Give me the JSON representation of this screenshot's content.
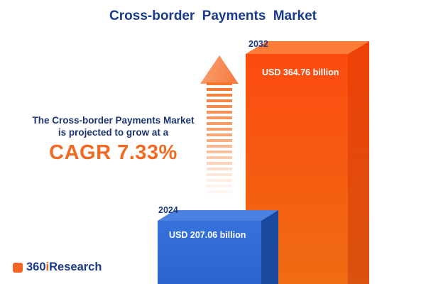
{
  "title": "Cross-border Payments Market",
  "annotation": {
    "line1": "The Cross-border Payments Market",
    "line2": "is projected to grow at a",
    "cagr_text": "CAGR 7.33%"
  },
  "bars": [
    {
      "year": "2024",
      "value_label": "USD 207.06 billion"
    },
    {
      "year": "2032",
      "value_label": "USD 364.76 billion"
    }
  ],
  "logo": {
    "prefix": "360",
    "i": "i",
    "suffix": "Research"
  },
  "colors": {
    "navy": "#173a8c",
    "accent_orange": "#f26a21",
    "bar_blue": "#3671da",
    "bar_blue_side": "#1a4aa0",
    "bar_orange": "#f94f10",
    "bar_orange_side": "#e04b0a",
    "background": "#ffffff"
  },
  "chart_data": {
    "type": "bar",
    "orientation": "vertical",
    "title": "Cross-border Payments Market",
    "categories": [
      "2024",
      "2032"
    ],
    "values": [
      207.06,
      364.76
    ],
    "unit": "USD billion",
    "value_labels": [
      "USD 207.06 billion",
      "USD 364.76 billion"
    ],
    "cagr_percent": 7.33,
    "annotation": "The Cross-border Payments Market is projected to grow at a CAGR 7.33%",
    "legend": "none",
    "grid": false,
    "bar_colors": [
      "#3671da",
      "#f94f10"
    ],
    "style": "3d-extruded bars with striped growth arrow"
  }
}
